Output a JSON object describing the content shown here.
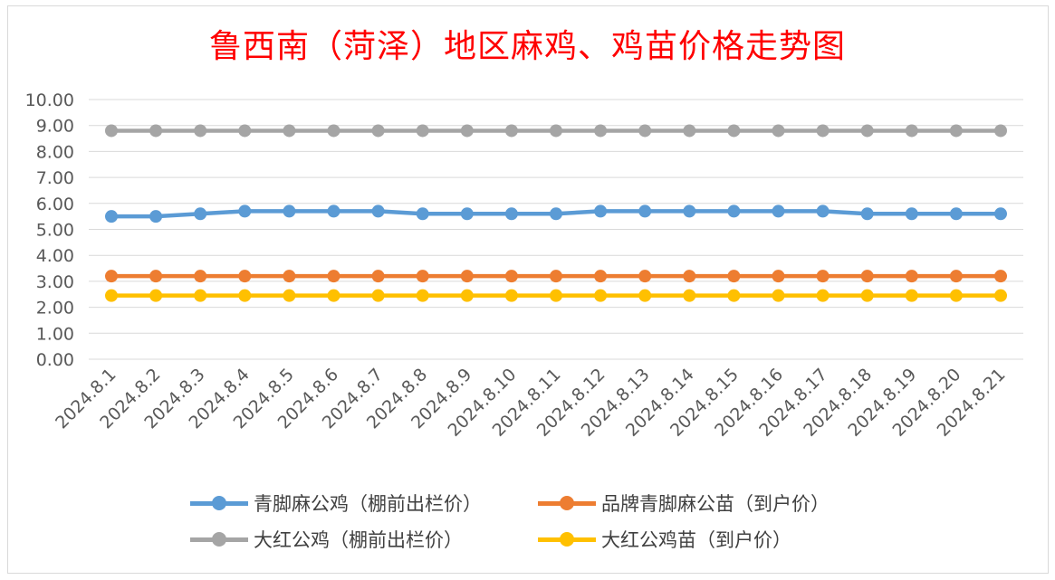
{
  "chart_data": {
    "type": "line",
    "title": "鲁西南（菏泽）地区麻鸡、鸡苗价格走势图",
    "categories": [
      "2024.8.1",
      "2024.8.2",
      "2024.8.3",
      "2024.8.4",
      "2024.8.5",
      "2024.8.6",
      "2024.8.7",
      "2024.8.8",
      "2024.8.9",
      "2024.8.10",
      "2024.8.11",
      "2024.8.12",
      "2024.8.13",
      "2024.8.14",
      "2024.8.15",
      "2024.8.16",
      "2024.8.17",
      "2024.8.18",
      "2024.8.19",
      "2024.8.20",
      "2024.8.21"
    ],
    "ylim": [
      0,
      10
    ],
    "yticks": [
      "0.00",
      "1.00",
      "2.00",
      "3.00",
      "4.00",
      "5.00",
      "6.00",
      "7.00",
      "8.00",
      "9.00",
      "10.00"
    ],
    "grid": true,
    "legend_position": "bottom",
    "series": [
      {
        "name": "青脚麻公鸡（棚前出栏价）",
        "color": "#5b9bd5",
        "values": [
          5.5,
          5.5,
          5.6,
          5.7,
          5.7,
          5.7,
          5.7,
          5.6,
          5.6,
          5.6,
          5.6,
          5.7,
          5.7,
          5.7,
          5.7,
          5.7,
          5.7,
          5.6,
          5.6,
          5.6,
          5.6
        ]
      },
      {
        "name": "品牌青脚麻公苗（到户价）",
        "color": "#ed7d31",
        "values": [
          3.2,
          3.2,
          3.2,
          3.2,
          3.2,
          3.2,
          3.2,
          3.2,
          3.2,
          3.2,
          3.2,
          3.2,
          3.2,
          3.2,
          3.2,
          3.2,
          3.2,
          3.2,
          3.2,
          3.2,
          3.2
        ]
      },
      {
        "name": "大红公鸡（棚前出栏价）",
        "color": "#a5a5a5",
        "values": [
          8.8,
          8.8,
          8.8,
          8.8,
          8.8,
          8.8,
          8.8,
          8.8,
          8.8,
          8.8,
          8.8,
          8.8,
          8.8,
          8.8,
          8.8,
          8.8,
          8.8,
          8.8,
          8.8,
          8.8,
          8.8
        ]
      },
      {
        "name": "大红公鸡苗（到户价）",
        "color": "#ffc000",
        "values": [
          2.45,
          2.45,
          2.45,
          2.45,
          2.45,
          2.45,
          2.45,
          2.45,
          2.45,
          2.45,
          2.45,
          2.45,
          2.45,
          2.45,
          2.45,
          2.45,
          2.45,
          2.45,
          2.45,
          2.45,
          2.45
        ]
      }
    ]
  }
}
